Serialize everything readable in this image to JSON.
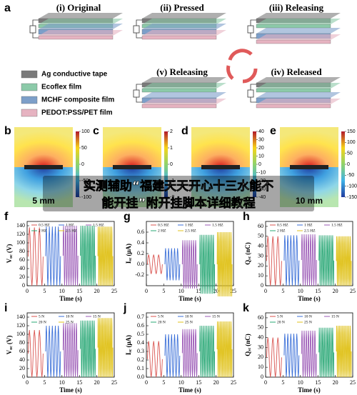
{
  "panel_a": {
    "label": "a",
    "stages": [
      "(i) Original",
      "(ii) Pressed",
      "(iii) Releasing",
      "(iv) Released",
      "(v) Releasing"
    ],
    "legend": [
      {
        "name": "Ag conductive tape",
        "color": "#7a7a7a"
      },
      {
        "name": "Ecoflex film",
        "color": "#8ccaa9"
      },
      {
        "name": "MCHF composite film",
        "color": "#7d9fc9"
      },
      {
        "name": "PEDOT:PSS/PET film",
        "color": "#e6b3c1"
      }
    ]
  },
  "maps": [
    {
      "label": "b",
      "scale": "5 mm",
      "ticks": [
        100,
        50,
        0,
        -50,
        -100
      ]
    },
    {
      "label": "c",
      "ticks": [
        2,
        1,
        0,
        -1,
        -2
      ]
    },
    {
      "label": "d",
      "ticks": [
        40,
        30,
        20,
        10,
        0,
        -10,
        -20,
        -30,
        -40
      ]
    },
    {
      "label": "e",
      "scale": "10 mm",
      "ticks": [
        150,
        100,
        50,
        0,
        -50,
        -100,
        -150
      ]
    }
  ],
  "plots": [
    {
      "label": "f",
      "ylabel": "V",
      "ylabel_sub": "oc",
      "ylabel_unit": "(V)",
      "xlabel": "Time (s)",
      "xlim": [
        0,
        25
      ],
      "xticks": [
        0,
        5,
        10,
        15,
        20,
        25
      ],
      "ylim": [
        0,
        150
      ],
      "yticks": [
        0,
        20,
        40,
        60,
        80,
        100,
        120,
        140
      ],
      "series": [
        {
          "name": "0.5 HZ",
          "color": "#d9534f",
          "amplitude": 136
        },
        {
          "name": "1 HZ",
          "color": "#3a6fd8",
          "amplitude": 138
        },
        {
          "name": "1.5 HZ",
          "color": "#9b59b6",
          "amplitude": 140
        },
        {
          "name": "2 HZ",
          "color": "#2aa876",
          "amplitude": 140
        },
        {
          "name": "2.5 HZ",
          "color": "#e0c21b",
          "amplitude": 138
        }
      ]
    },
    {
      "label": "g",
      "ylabel": "I",
      "ylabel_sub": "sc",
      "ylabel_unit": "(μA)",
      "xlabel": "Time (s)",
      "xlim": [
        0,
        25
      ],
      "xticks": [
        0,
        5,
        10,
        15,
        20,
        25
      ],
      "ylim": [
        -0.4,
        0.8
      ],
      "yticks": [
        {
          "value": -0.2,
          "label": "-0.2"
        },
        {
          "value": 0,
          "label": "0.0"
        },
        {
          "value": 0.2,
          "label": "0.2"
        },
        {
          "value": 0.4,
          "label": "0.4"
        },
        {
          "value": 0.6,
          "label": "0.6"
        }
      ],
      "symmetric": true,
      "series": [
        {
          "name": "0.5 HZ",
          "color": "#d9534f",
          "amplitude": 0.18
        },
        {
          "name": "1 HZ",
          "color": "#3a6fd8",
          "amplitude": 0.3
        },
        {
          "name": "1.5 HZ",
          "color": "#9b59b6",
          "amplitude": 0.45
        },
        {
          "name": "2 HZ",
          "color": "#2aa876",
          "amplitude": 0.55
        },
        {
          "name": "2.5 HZ",
          "color": "#e0c21b",
          "amplitude": 0.6
        }
      ]
    },
    {
      "label": "h",
      "ylabel": "Q",
      "ylabel_sub": "sc",
      "ylabel_unit": "(nC)",
      "xlabel": "Time (s)",
      "xlim": [
        0,
        25
      ],
      "xticks": [
        0,
        5,
        10,
        15,
        20,
        25
      ],
      "ylim": [
        0,
        65
      ],
      "yticks": [
        0,
        10,
        20,
        30,
        40,
        50,
        60
      ],
      "series": [
        {
          "name": "0.5 HZ",
          "color": "#d9534f",
          "amplitude": 50
        },
        {
          "name": "1 HZ",
          "color": "#3a6fd8",
          "amplitude": 51
        },
        {
          "name": "1.5 HZ",
          "color": "#9b59b6",
          "amplitude": 52
        },
        {
          "name": "2 HZ",
          "color": "#2aa876",
          "amplitude": 51
        },
        {
          "name": "2.5 HZ",
          "color": "#e0c21b",
          "amplitude": 50
        }
      ]
    },
    {
      "label": "i",
      "ylabel": "V",
      "ylabel_sub": "oc",
      "ylabel_unit": "(V)",
      "xlabel": "Time (s)",
      "xlim": [
        0,
        25
      ],
      "xticks": [
        0,
        5,
        10,
        15,
        20,
        25
      ],
      "ylim": [
        0,
        150
      ],
      "yticks": [
        0,
        20,
        40,
        60,
        80,
        100,
        120,
        140
      ],
      "series": [
        {
          "name": "5 N",
          "color": "#d9534f",
          "amplitude": 110
        },
        {
          "name": "10 N",
          "color": "#3a6fd8",
          "amplitude": 120
        },
        {
          "name": "15 N",
          "color": "#9b59b6",
          "amplitude": 126
        },
        {
          "name": "20 N",
          "color": "#2aa876",
          "amplitude": 132
        },
        {
          "name": "25 N",
          "color": "#e0c21b",
          "amplitude": 138
        }
      ]
    },
    {
      "label": "j",
      "ylabel": "I",
      "ylabel_sub": "sc",
      "ylabel_unit": "(μA)",
      "xlabel": "Time (s)",
      "xlim": [
        0,
        25
      ],
      "xticks": [
        0,
        5,
        10,
        15,
        20,
        25
      ],
      "ylim": [
        0,
        0.75
      ],
      "yticks": [
        {
          "value": 0,
          "label": "0.0"
        },
        0.1,
        0.2,
        0.3,
        0.4,
        0.5,
        0.6,
        0.7
      ],
      "series": [
        {
          "name": "5 N",
          "color": "#d9534f",
          "amplitude": 0.42
        },
        {
          "name": "10 N",
          "color": "#3a6fd8",
          "amplitude": 0.5
        },
        {
          "name": "15 N",
          "color": "#9b59b6",
          "amplitude": 0.56
        },
        {
          "name": "20 N",
          "color": "#2aa876",
          "amplitude": 0.6
        },
        {
          "name": "25 N",
          "color": "#e0c21b",
          "amplitude": 0.65
        }
      ]
    },
    {
      "label": "k",
      "ylabel": "Q",
      "ylabel_sub": "sc",
      "ylabel_unit": "(nC)",
      "xlabel": "Time (s)",
      "xlim": [
        0,
        25
      ],
      "xticks": [
        0,
        5,
        10,
        15,
        20,
        25
      ],
      "ylim": [
        0,
        65
      ],
      "yticks": [
        0,
        10,
        20,
        30,
        40,
        50,
        60
      ],
      "series": [
        {
          "name": "5 N",
          "color": "#d9534f",
          "amplitude": 40
        },
        {
          "name": "10 N",
          "color": "#3a6fd8",
          "amplitude": 44
        },
        {
          "name": "15 N",
          "color": "#9b59b6",
          "amplitude": 47
        },
        {
          "name": "20 N",
          "color": "#2aa876",
          "amplitude": 50
        },
        {
          "name": "25 N",
          "color": "#e0c21b",
          "amplitude": 52
        }
      ]
    }
  ],
  "overlay": [
    "实测辅助“福建天天开心十三水能不",
    "能开挂”附开挂脚本详细教程"
  ]
}
